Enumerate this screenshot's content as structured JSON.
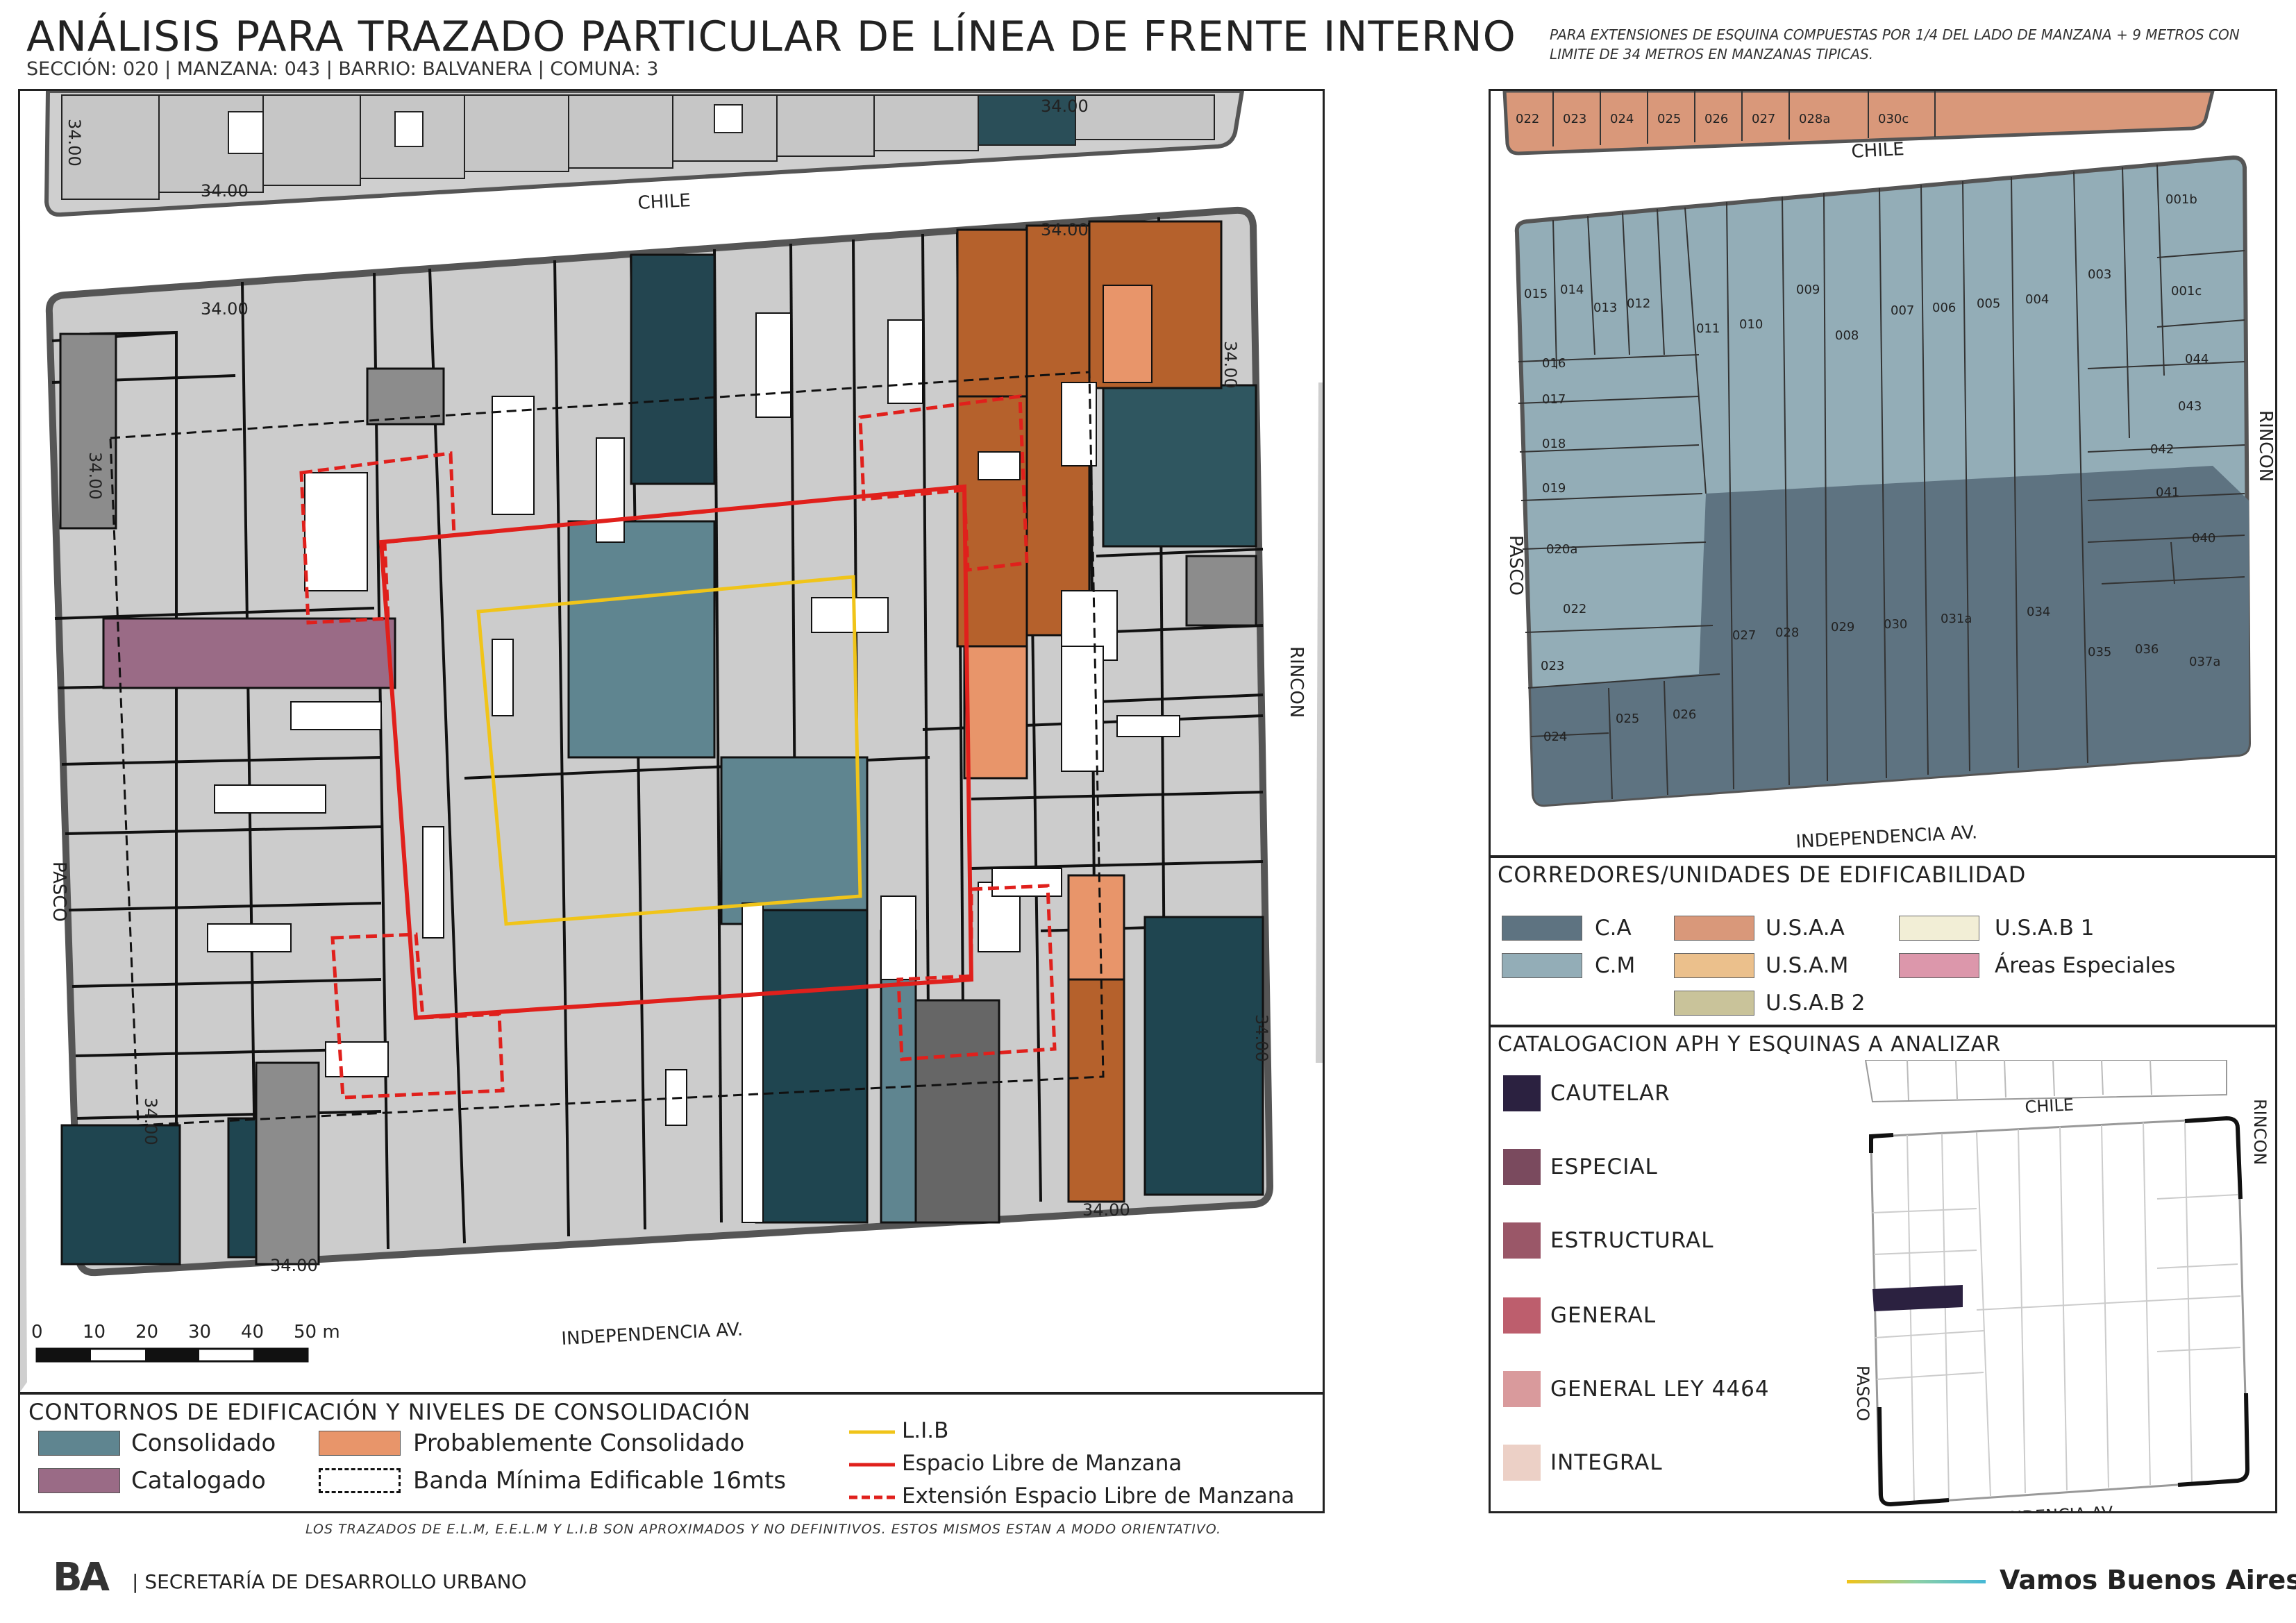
{
  "header": {
    "title": "ANÁLISIS PARA TRAZADO PARTICULAR DE LÍNEA DE FRENTE INTERNO",
    "subtitle": "SECCIÓN: 020 |  MANZANA: 043 | BARRIO: BALVANERA | COMUNA: 3",
    "note": "PARA EXTENSIONES DE ESQUINA COMPUESTAS POR 1/4 DEL LADO DE MANZANA + 9 METROS CON LIMITE DE 34 METROS EN MANZANAS TIPICAS."
  },
  "main_map": {
    "streets": {
      "north": "CHILE",
      "south": "INDEPENDENCIA AV.",
      "west": "PASCO",
      "east": "RINCON"
    },
    "dimension_label": "34.00",
    "scale": {
      "ticks": [
        "0",
        "10",
        "20",
        "30",
        "40",
        "50 m"
      ]
    }
  },
  "legend_consolidacion": {
    "title": "CONTORNOS DE EDIFICACIÓN Y NIVELES DE CONSOLIDACIÓN",
    "items": [
      {
        "label": "Consolidado",
        "color": "#5f8590"
      },
      {
        "label": "Probablemente Consolidado",
        "color": "#e8956a"
      },
      {
        "label": "Catalogado",
        "color": "#9a6b86"
      },
      {
        "label": "Banda Mínima Edificable 16mts",
        "style": "dashed-black"
      }
    ],
    "lines": [
      {
        "label": "L.I.B",
        "color": "#f0c419",
        "style": "solid"
      },
      {
        "label": "Espacio Libre de Manzana",
        "color": "#e0201c",
        "style": "solid"
      },
      {
        "label": "Extensión Espacio Libre de Manzana",
        "color": "#e0201c",
        "style": "dashed"
      }
    ]
  },
  "disclaimer": "LOS TRAZADOS DE E.L.M, E.E.L.M Y L.I.B SON APROXIMADOS Y NO DEFINITIVOS. ESTOS MISMOS ESTAN A MODO ORIENTATIVO.",
  "parcel_map": {
    "streets": {
      "north": "CHILE",
      "south": "INDEPENDENCIA AV.",
      "west": "PASCO",
      "east": "RINCON"
    },
    "top_row": [
      "022",
      "023",
      "024",
      "025",
      "026",
      "027",
      "028a",
      "030c"
    ],
    "lots": [
      "001b",
      "001c",
      "003",
      "004",
      "005",
      "006",
      "007",
      "008",
      "009",
      "010",
      "011",
      "012",
      "013",
      "014",
      "015",
      "016",
      "017",
      "018",
      "019",
      "020a",
      "022",
      "023",
      "024",
      "025",
      "026",
      "027",
      "028",
      "029",
      "030",
      "031a",
      "034",
      "035",
      "036",
      "037a",
      "040",
      "041",
      "042",
      "043",
      "044"
    ]
  },
  "corredores": {
    "title": "CORREDORES/UNIDADES DE EDIFICABILIDAD",
    "items": [
      {
        "label": "C.A",
        "color": "#5e7381"
      },
      {
        "label": "C.M",
        "color": "#93adb7"
      },
      {
        "label": "U.S.A.A",
        "color": "#d9987a"
      },
      {
        "label": "U.S.A.M",
        "color": "#ebc08c"
      },
      {
        "label": "U.S.A.B 2",
        "color": "#c9c39a"
      },
      {
        "label": "U.S.A.B 1",
        "color": "#f2eed6"
      },
      {
        "label": "Áreas Especiales",
        "color": "#dc97ab"
      }
    ]
  },
  "catalogacion": {
    "title": "CATALOGACION APH Y ESQUINAS A ANALIZAR",
    "items": [
      {
        "label": "CAUTELAR",
        "color": "#2b2140"
      },
      {
        "label": "ESPECIAL",
        "color": "#7a4a5e"
      },
      {
        "label": "ESTRUCTURAL",
        "color": "#9a5768"
      },
      {
        "label": "GENERAL",
        "color": "#bd5e6d"
      },
      {
        "label": "GENERAL LEY 4464",
        "color": "#d99a9c"
      },
      {
        "label": "INTEGRAL",
        "color": "#ecd0c6"
      }
    ],
    "mini_map_streets": {
      "north": "CHILE",
      "south": "INDEPENDENCIA AV.",
      "west": "PASCO",
      "east": "RINCON"
    }
  },
  "footer": {
    "logo": "BA",
    "org": "| SECRETARÍA DE DESARROLLO URBANO",
    "brand": "Vamos Buenos Aires"
  }
}
